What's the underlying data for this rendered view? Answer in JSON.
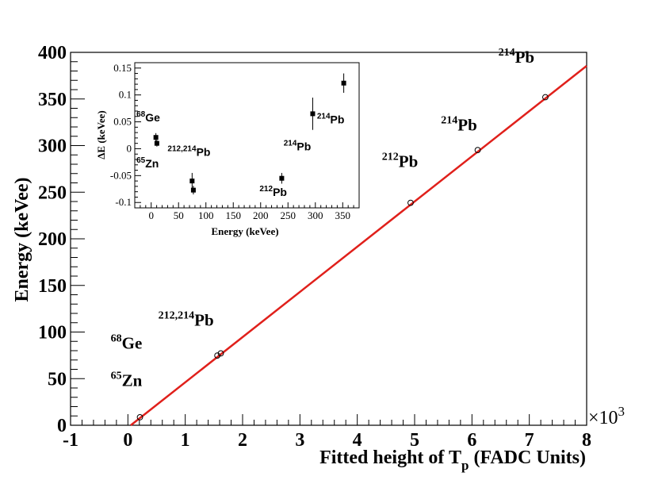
{
  "chart_data": [
    {
      "type": "scatter",
      "xlabel_main": "Fitted height of T",
      "xlabel_sub": "p",
      "xlabel_tail": " (FADC Units)",
      "ylabel": "Energy (keVee)",
      "xlim": [
        -1,
        8
      ],
      "ylim": [
        0,
        400
      ],
      "x_multiplier_base": "×10",
      "x_multiplier_exp": "3",
      "xticks": [
        -1,
        0,
        1,
        2,
        3,
        4,
        5,
        6,
        7,
        8
      ],
      "yticks": [
        0,
        50,
        100,
        150,
        200,
        250,
        300,
        350,
        400
      ],
      "grid": false,
      "points": [
        {
          "x": 0.21,
          "y": 8.6
        },
        {
          "x": 1.56,
          "y": 74.8
        },
        {
          "x": 1.62,
          "y": 77.1
        },
        {
          "x": 4.93,
          "y": 238.6
        },
        {
          "x": 6.1,
          "y": 295.2
        },
        {
          "x": 7.28,
          "y": 351.9
        }
      ],
      "fit_line": {
        "x": [
          0.05,
          8
        ],
        "y": [
          0,
          385.5
        ],
        "color": "#e0201b"
      },
      "annotations": [
        {
          "base": "Zn",
          "sup": "65",
          "x": -0.3,
          "y": 42
        },
        {
          "base": "Ge",
          "sup": "68",
          "x": -0.3,
          "y": 82
        },
        {
          "base": "Pb",
          "sup": "212,214",
          "x": 0.53,
          "y": 107
        },
        {
          "base": "Pb",
          "sup": "212",
          "x": 4.43,
          "y": 277
        },
        {
          "base": "Pb",
          "sup": "214",
          "x": 5.46,
          "y": 316
        },
        {
          "base": "Pb",
          "sup": "214",
          "x": 6.46,
          "y": 389
        }
      ]
    },
    {
      "type": "scatter",
      "xlabel": "Energy (keVee)",
      "ylabel": "ΔE (keVee)",
      "xlim": [
        -30,
        380
      ],
      "ylim": [
        -0.11,
        0.16
      ],
      "xticks": [
        0,
        50,
        100,
        150,
        200,
        250,
        300,
        350
      ],
      "yticks": [
        -0.1,
        -0.05,
        0,
        0.05,
        0.1,
        0.15
      ],
      "grid": false,
      "points": [
        {
          "x": 8.6,
          "y": 0.021,
          "err": 0.008
        },
        {
          "x": 10.4,
          "y": 0.01,
          "err": 0.006
        },
        {
          "x": 74.8,
          "y": -0.06,
          "err": 0.015
        },
        {
          "x": 77.1,
          "y": -0.077,
          "err": 0.008
        },
        {
          "x": 238.6,
          "y": -0.055,
          "err": 0.01
        },
        {
          "x": 295.2,
          "y": 0.065,
          "err": 0.03
        },
        {
          "x": 351.9,
          "y": 0.122,
          "err": 0.018
        }
      ],
      "annotations": [
        {
          "base": "Ge",
          "sup": "68",
          "x": -27,
          "y": 0.051
        },
        {
          "base": "Zn",
          "sup": "65",
          "x": -27,
          "y": -0.035
        },
        {
          "base": "Pb",
          "sup": "212,214",
          "x": 30,
          "y": -0.013
        },
        {
          "base": "Pb",
          "sup": "212",
          "x": 198,
          "y": -0.088
        },
        {
          "base": "Pb",
          "sup": "214",
          "x": 242,
          "y": -0.003
        },
        {
          "base": "Pb",
          "sup": "214",
          "x": 303,
          "y": 0.047
        }
      ]
    }
  ]
}
